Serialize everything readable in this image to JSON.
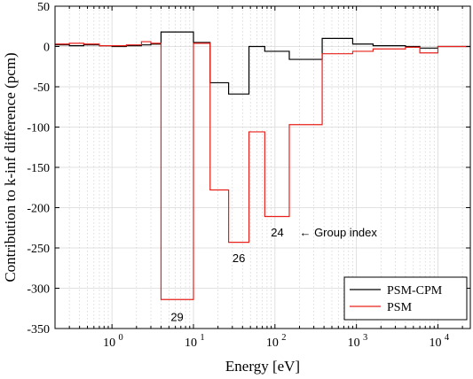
{
  "chart_data": {
    "type": "line",
    "style": "step",
    "xlabel": "Energy [eV]",
    "ylabel": "Contribution to k-inf difference (pcm)",
    "xscale": "log",
    "xlim": [
      0.2,
      25000
    ],
    "ylim": [
      -350,
      50
    ],
    "yticks": [
      50,
      0,
      -50,
      -100,
      -150,
      -200,
      -250,
      -300,
      -350
    ],
    "yticklabels": [
      "50",
      "0",
      "-50",
      "-100",
      "-150",
      "-200",
      "-250",
      "-300",
      "-350"
    ],
    "xticks": [
      {
        "value": 1,
        "base": "10",
        "exp": "0"
      },
      {
        "value": 10,
        "base": "10",
        "exp": "1"
      },
      {
        "value": 100,
        "base": "10",
        "exp": "2"
      },
      {
        "value": 1000,
        "base": "10",
        "exp": "3"
      },
      {
        "value": 10000,
        "base": "10",
        "exp": "4"
      }
    ],
    "grid": true,
    "legend_position": "bottom-right",
    "series": [
      {
        "name": "PSM-CPM",
        "color": "#000000",
        "edges": [
          0.2,
          0.3,
          0.45,
          0.7,
          1.0,
          1.5,
          2.3,
          3.0,
          4.0,
          10,
          16,
          27,
          48,
          75,
          150,
          380,
          900,
          1600,
          4000,
          6000,
          10000,
          25000
        ],
        "values": [
          2,
          1,
          2,
          1,
          0,
          1,
          2,
          3,
          18,
          5,
          -45,
          -59,
          0,
          -6,
          -16,
          10,
          3,
          1,
          0,
          -2,
          0
        ]
      },
      {
        "name": "PSM",
        "color": "#e8211b",
        "edges": [
          0.2,
          0.3,
          0.45,
          0.7,
          1.0,
          1.5,
          2.3,
          3.0,
          4.0,
          10,
          16,
          27,
          48,
          75,
          150,
          380,
          900,
          1600,
          4000,
          6000,
          10000,
          25000
        ],
        "values": [
          3,
          4,
          3,
          1,
          1,
          2,
          6,
          4,
          -314,
          4,
          -178,
          -243,
          -106,
          -211,
          -97,
          -9,
          -6,
          -3,
          -1,
          -8,
          0
        ]
      }
    ],
    "annotations": [
      {
        "text": "29",
        "x": 6.3,
        "y": -335
      },
      {
        "text": "26",
        "x": 36,
        "y": -262
      },
      {
        "text": "24",
        "x": 107,
        "y": -230
      },
      {
        "text": "← Group index",
        "x": 200,
        "y": -230
      }
    ]
  }
}
